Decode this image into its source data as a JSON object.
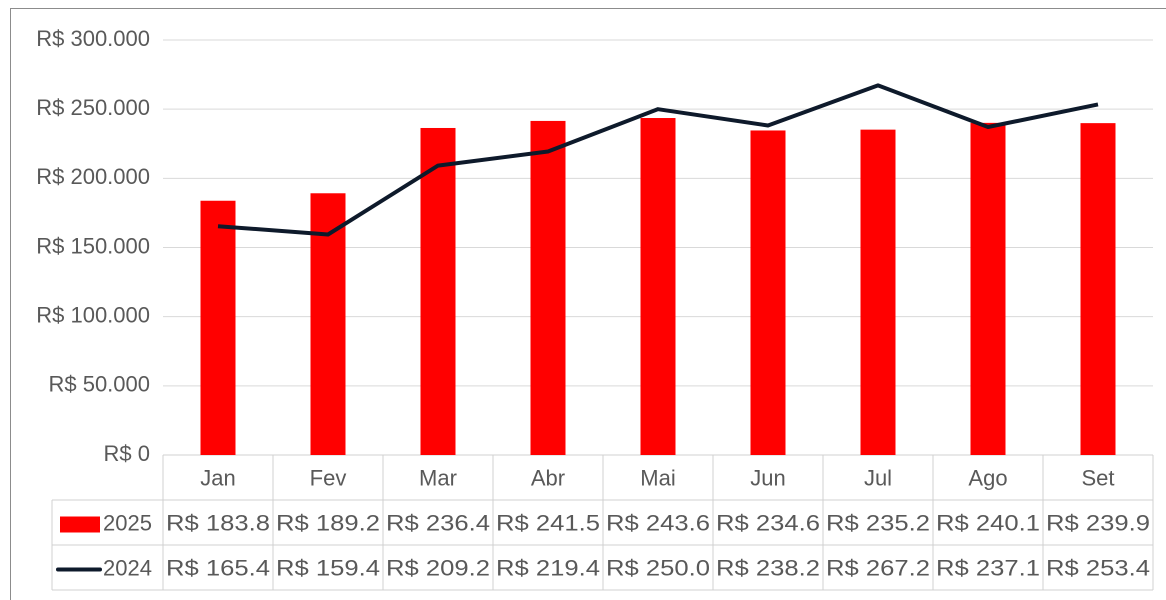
{
  "chart_data": {
    "type": "bar",
    "categories": [
      "Jan",
      "Fev",
      "Mar",
      "Abr",
      "Mai",
      "Jun",
      "Jul",
      "Ago",
      "Set"
    ],
    "series": [
      {
        "name": "2025",
        "type": "bar",
        "color": "#ff0000",
        "values": [
          183800,
          189200,
          236400,
          241500,
          243600,
          234600,
          235200,
          240100,
          239900
        ],
        "value_labels": [
          "R$ 183.8",
          "R$ 189.2",
          "R$ 236.4",
          "R$ 241.5",
          "R$ 243.6",
          "R$ 234.6",
          "R$ 235.2",
          "R$ 240.1",
          "R$ 239.9"
        ]
      },
      {
        "name": "2024",
        "type": "line",
        "color": "#0e1a2b",
        "values": [
          165400,
          159400,
          209200,
          219400,
          250000,
          238200,
          267200,
          237100,
          253400
        ],
        "value_labels": [
          "R$ 165.4",
          "R$ 159.4",
          "R$ 209.2",
          "R$ 219.4",
          "R$ 250.0",
          "R$ 238.2",
          "R$ 267.2",
          "R$ 237.1",
          "R$ 253.4"
        ]
      }
    ],
    "ylim": [
      0,
      300000
    ],
    "yticks": [
      {
        "value": 0,
        "label": "R$ 0"
      },
      {
        "value": 50000,
        "label": "R$ 50.000"
      },
      {
        "value": 100000,
        "label": "R$ 100.000"
      },
      {
        "value": 150000,
        "label": "R$ 150.000"
      },
      {
        "value": 200000,
        "label": "R$ 200.000"
      },
      {
        "value": 250000,
        "label": "R$ 250.000"
      },
      {
        "value": 300000,
        "label": "R$ 300.000"
      }
    ],
    "grid": true
  }
}
